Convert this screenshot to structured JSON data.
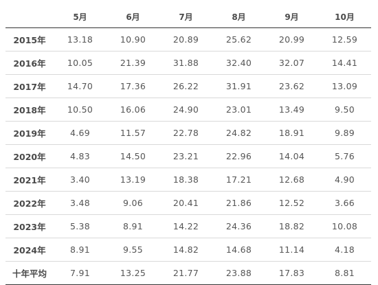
{
  "table": {
    "header_blank": "",
    "columns": [
      "5月",
      "6月",
      "7月",
      "8月",
      "9月",
      "10月"
    ],
    "rows": [
      {
        "label": "2015年",
        "values": [
          "13.18",
          "10.90",
          "20.89",
          "25.62",
          "20.99",
          "12.59"
        ]
      },
      {
        "label": "2016年",
        "values": [
          "10.05",
          "21.39",
          "31.88",
          "32.40",
          "32.07",
          "14.41"
        ]
      },
      {
        "label": "2017年",
        "values": [
          "14.70",
          "17.36",
          "26.22",
          "31.91",
          "23.62",
          "13.09"
        ]
      },
      {
        "label": "2018年",
        "values": [
          "10.50",
          "16.06",
          "24.90",
          "23.01",
          "13.49",
          "9.50"
        ]
      },
      {
        "label": "2019年",
        "values": [
          "4.69",
          "11.57",
          "22.78",
          "24.82",
          "18.91",
          "9.89"
        ]
      },
      {
        "label": "2020年",
        "values": [
          "4.83",
          "14.50",
          "23.21",
          "22.96",
          "14.04",
          "5.76"
        ]
      },
      {
        "label": "2021年",
        "values": [
          "3.40",
          "13.19",
          "18.38",
          "17.21",
          "12.68",
          "4.90"
        ]
      },
      {
        "label": "2022年",
        "values": [
          "3.48",
          "9.06",
          "20.41",
          "21.86",
          "12.52",
          "3.66"
        ]
      },
      {
        "label": "2023年",
        "values": [
          "5.38",
          "8.91",
          "14.22",
          "24.36",
          "18.82",
          "10.08"
        ]
      },
      {
        "label": "2024年",
        "values": [
          "8.91",
          "9.55",
          "14.82",
          "14.68",
          "11.14",
          "4.18"
        ]
      },
      {
        "label": "十年平均",
        "values": [
          "7.91",
          "13.25",
          "21.77",
          "23.88",
          "17.83",
          "8.81"
        ]
      }
    ]
  }
}
